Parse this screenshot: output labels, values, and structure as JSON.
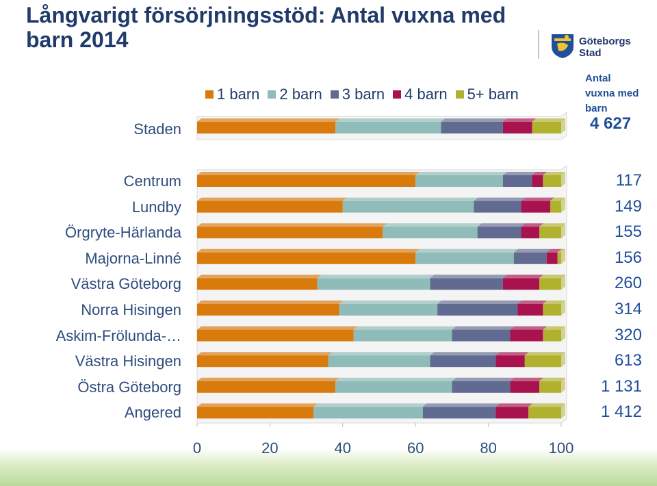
{
  "title": "Långvarigt försörjningsstöd: Antal vuxna med barn 2014",
  "logo": {
    "line1": "Göteborgs",
    "line2": "Stad"
  },
  "colors": {
    "1 barn": "#d97a0c",
    "2 barn": "#8fbcb8",
    "3 barn": "#616b91",
    "4 barn": "#a8134f",
    "5+ barn": "#b0b12e"
  },
  "legend": [
    "1 barn",
    "2 barn",
    "3 barn",
    "4 barn",
    "5+ barn"
  ],
  "total_header": {
    "line1": "Antal",
    "line2": "vuxna med",
    "line3": "barn"
  },
  "total": {
    "label": "Staden",
    "value": "4 627"
  },
  "chart_data": {
    "type": "bar",
    "orientation": "horizontal",
    "stacked": "percent",
    "xlim": [
      0,
      100
    ],
    "xticks": [
      "0",
      "20",
      "40",
      "60",
      "80",
      "100"
    ],
    "series_names": [
      "1 barn",
      "2 barn",
      "3 barn",
      "4 barn",
      "5+ barn"
    ],
    "staden": {
      "label": "Staden",
      "values": [
        38,
        29,
        17,
        8,
        8
      ],
      "count": "4 627"
    },
    "categories": [
      "Centrum",
      "Lundby",
      "Örgryte-Härlanda",
      "Majorna-Linné",
      "Västra Göteborg",
      "Norra Hisingen",
      "Askim-Frölunda-…",
      "Västra Hisingen",
      "Östra Göteborg",
      "Angered"
    ],
    "values": [
      [
        60,
        24,
        8,
        3,
        5
      ],
      [
        40,
        36,
        13,
        8,
        3
      ],
      [
        51,
        26,
        12,
        5,
        6
      ],
      [
        60,
        27,
        9,
        3,
        1
      ],
      [
        33,
        31,
        20,
        10,
        6
      ],
      [
        39,
        27,
        22,
        7,
        5
      ],
      [
        43,
        27,
        16,
        9,
        5
      ],
      [
        36,
        28,
        18,
        8,
        10
      ],
      [
        38,
        32,
        16,
        8,
        6
      ],
      [
        32,
        30,
        20,
        9,
        9
      ]
    ],
    "counts": [
      "117",
      "149",
      "155",
      "156",
      "260",
      "314",
      "320",
      "613",
      "1 131",
      "1 412"
    ]
  }
}
